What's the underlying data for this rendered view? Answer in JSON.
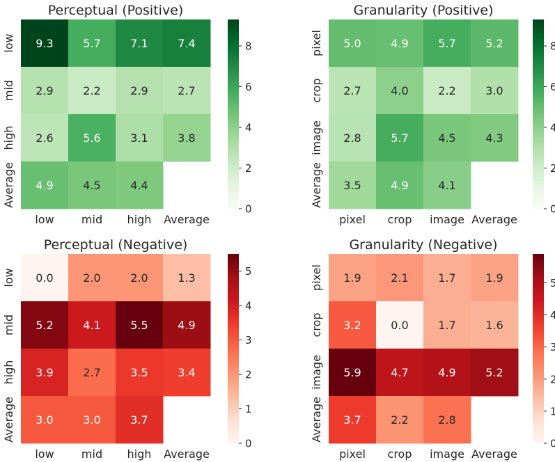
{
  "colors": {
    "greens": [
      "#f7fcf5",
      "#e5f5e0",
      "#c7e9c0",
      "#a1d99b",
      "#74c476",
      "#41ab5d",
      "#238b45",
      "#006d2c",
      "#00441b"
    ],
    "reds": [
      "#fff5f0",
      "#fee0d2",
      "#fcbba1",
      "#fc9272",
      "#fb6a4a",
      "#ef3b2c",
      "#cb181d",
      "#a50f15",
      "#67000d"
    ],
    "text_light": "#ffffff",
    "text_dark": "#262626"
  },
  "chart_data": [
    {
      "type": "heatmap",
      "title": "Perceptual (Positive)",
      "colormap": "greens",
      "x_labels": [
        "low",
        "mid",
        "high",
        "Average"
      ],
      "y_labels": [
        "low",
        "mid",
        "high",
        "Average"
      ],
      "values": [
        [
          9.3,
          5.7,
          7.1,
          7.4
        ],
        [
          2.9,
          2.2,
          2.9,
          2.7
        ],
        [
          2.6,
          5.6,
          3.1,
          3.8
        ],
        [
          4.9,
          4.5,
          4.4,
          null
        ]
      ],
      "value_labels": [
        [
          "9.3",
          "5.7",
          "7.1",
          "7.4"
        ],
        [
          "2.9",
          "2.2",
          "2.9",
          "2.7"
        ],
        [
          "2.6",
          "5.6",
          "3.1",
          "3.8"
        ],
        [
          "4.9",
          "4.5",
          "4.4",
          ""
        ]
      ],
      "vmin": 0,
      "vmax": 9.3,
      "colorbar_ticks": [
        0,
        2,
        4,
        6,
        8
      ],
      "colorbar_tick_labels": [
        "0",
        "2",
        "4",
        "6",
        "8"
      ]
    },
    {
      "type": "heatmap",
      "title": "Granularity (Positive)",
      "colormap": "greens",
      "x_labels": [
        "pixel",
        "crop",
        "image",
        "Average"
      ],
      "y_labels": [
        "pixel",
        "crop",
        "image",
        "Average"
      ],
      "values": [
        [
          5.0,
          4.9,
          5.7,
          5.2
        ],
        [
          2.7,
          4.0,
          2.2,
          3.0
        ],
        [
          2.8,
          5.7,
          4.5,
          4.3
        ],
        [
          3.5,
          4.9,
          4.1,
          null
        ]
      ],
      "value_labels": [
        [
          "5.0",
          "4.9",
          "5.7",
          "5.2"
        ],
        [
          "2.7",
          "4.0",
          "2.2",
          "3.0"
        ],
        [
          "2.8",
          "5.7",
          "4.5",
          "4.3"
        ],
        [
          "3.5",
          "4.9",
          "4.1",
          ""
        ]
      ],
      "vmin": 0,
      "vmax": 9.3,
      "colorbar_ticks": [
        0,
        2,
        4,
        6,
        8
      ],
      "colorbar_tick_labels": [
        "0",
        "2",
        "4",
        "6",
        "8"
      ]
    },
    {
      "type": "heatmap",
      "title": "Perceptual (Negative)",
      "colormap": "reds",
      "x_labels": [
        "low",
        "mid",
        "high",
        "Average"
      ],
      "y_labels": [
        "low",
        "mid",
        "high",
        "Average"
      ],
      "values": [
        [
          0.0,
          2.0,
          2.0,
          1.3
        ],
        [
          5.2,
          4.1,
          5.5,
          4.9
        ],
        [
          3.9,
          2.7,
          3.5,
          3.4
        ],
        [
          3.0,
          3.0,
          3.7,
          null
        ]
      ],
      "value_labels": [
        [
          "0.0",
          "2.0",
          "2.0",
          "1.3"
        ],
        [
          "5.2",
          "4.1",
          "5.5",
          "4.9"
        ],
        [
          "3.9",
          "2.7",
          "3.5",
          "3.4"
        ],
        [
          "3.0",
          "3.0",
          "3.7",
          ""
        ]
      ],
      "vmin": 0,
      "vmax": 5.5,
      "colorbar_ticks": [
        0,
        1,
        2,
        3,
        4,
        5
      ],
      "colorbar_tick_labels": [
        "0",
        "1",
        "2",
        "3",
        "4",
        "5"
      ]
    },
    {
      "type": "heatmap",
      "title": "Granularity (Negative)",
      "colormap": "reds",
      "x_labels": [
        "pixel",
        "crop",
        "image",
        "Average"
      ],
      "y_labels": [
        "pixel",
        "crop",
        "image",
        "Average"
      ],
      "values": [
        [
          1.9,
          2.1,
          1.7,
          1.9
        ],
        [
          3.2,
          0.0,
          1.7,
          1.6
        ],
        [
          5.9,
          4.7,
          4.9,
          5.2
        ],
        [
          3.7,
          2.2,
          2.8,
          null
        ]
      ],
      "value_labels": [
        [
          "1.9",
          "2.1",
          "1.7",
          "1.9"
        ],
        [
          "3.2",
          "0.0",
          "1.7",
          "1.6"
        ],
        [
          "5.9",
          "4.7",
          "4.9",
          "5.2"
        ],
        [
          "3.7",
          "2.2",
          "2.8",
          ""
        ]
      ],
      "vmin": 0,
      "vmax": 5.9,
      "colorbar_ticks": [
        0,
        1,
        2,
        3,
        4,
        5
      ],
      "colorbar_tick_labels": [
        "0",
        "1",
        "2",
        "3",
        "4",
        "5"
      ]
    }
  ]
}
